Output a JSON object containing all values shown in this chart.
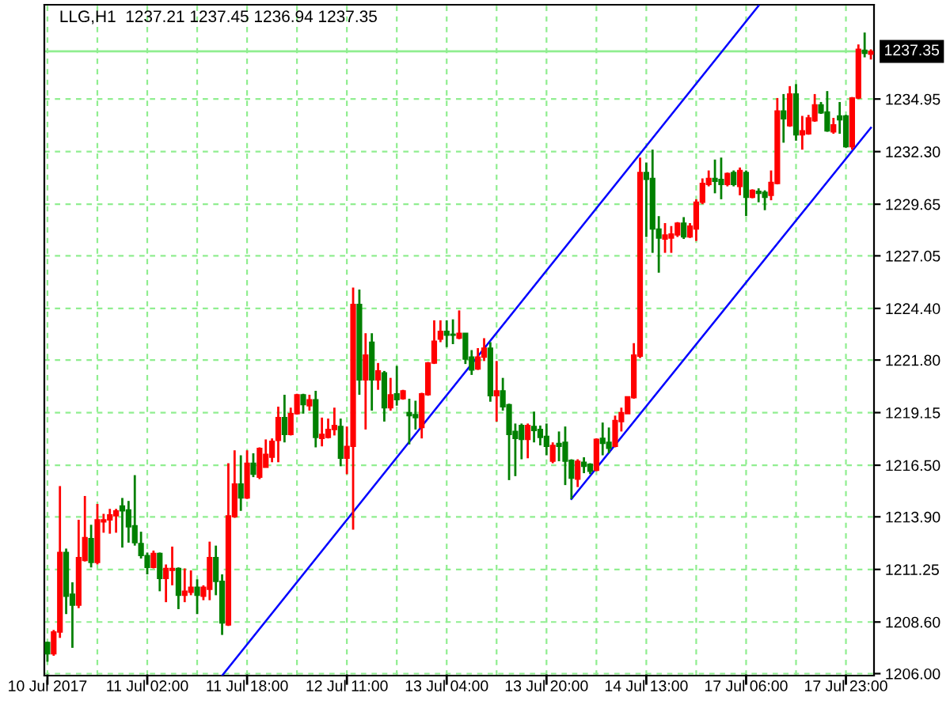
{
  "chart_data": {
    "type": "candlestick",
    "title": "LLG,H1  1237.21 1237.45 1236.94 1237.35",
    "categories": [
      "10 Jul 2017",
      null,
      null,
      null,
      null,
      null,
      null,
      null,
      null,
      null,
      null,
      null,
      null,
      null,
      null,
      null,
      "11 Jul 02:00",
      null,
      null,
      null,
      null,
      null,
      null,
      null,
      null,
      null,
      null,
      null,
      null,
      null,
      null,
      null,
      "11 Jul 18:00",
      null,
      null,
      null,
      null,
      null,
      null,
      null,
      null,
      null,
      null,
      null,
      null,
      null,
      null,
      null,
      "12 Jul 11:00",
      null,
      null,
      null,
      null,
      null,
      null,
      null,
      null,
      null,
      null,
      null,
      null,
      null,
      null,
      null,
      "13 Jul 04:00",
      null,
      null,
      null,
      null,
      null,
      null,
      null,
      null,
      null,
      null,
      null,
      null,
      null,
      null,
      null,
      "13 Jul 20:00",
      null,
      null,
      null,
      null,
      null,
      null,
      null,
      null,
      null,
      null,
      null,
      null,
      null,
      null,
      null,
      "14 Jul 13:00",
      null,
      null,
      null,
      null,
      null,
      null,
      null,
      null,
      null,
      null,
      null,
      null,
      null,
      null,
      null,
      "17 Jul 06:00",
      null,
      null,
      null,
      null,
      null,
      null,
      null,
      null,
      null,
      null,
      null,
      null,
      null,
      null,
      null,
      "17 Jul 23:00",
      null,
      null,
      null,
      null
    ],
    "ohlc": [
      [
        1207.57,
        1207.6,
        1206.6,
        1207.0
      ],
      [
        1207.0,
        1208.2,
        1206.9,
        1208.1
      ],
      [
        1208.1,
        1215.45,
        1207.8,
        1212.1
      ],
      [
        1212.1,
        1212.3,
        1209.0,
        1209.9
      ],
      [
        1210.0,
        1210.6,
        1207.3,
        1209.45
      ],
      [
        1209.45,
        1213.75,
        1209.3,
        1211.85
      ],
      [
        1211.7,
        1214.95,
        1211.65,
        1212.85
      ],
      [
        1212.8,
        1213.5,
        1211.35,
        1211.6
      ],
      [
        1211.6,
        1214.55,
        1211.5,
        1213.75
      ],
      [
        1213.65,
        1214.05,
        1213.1,
        1213.75
      ],
      [
        1213.75,
        1214.3,
        1213.05,
        1214.0
      ],
      [
        1213.95,
        1214.3,
        1213.1,
        1214.2
      ],
      [
        1214.45,
        1214.85,
        1212.35,
        1214.2
      ],
      [
        1214.25,
        1214.7,
        1212.6,
        1213.4
      ],
      [
        1213.45,
        1216.0,
        1212.45,
        1212.6
      ],
      [
        1212.55,
        1213.15,
        1211.8,
        1211.95
      ],
      [
        1211.95,
        1212.1,
        1211.0,
        1211.35
      ],
      [
        1211.35,
        1212.2,
        1211.3,
        1212.05
      ],
      [
        1212.05,
        1212.1,
        1210.15,
        1210.8
      ],
      [
        1210.8,
        1211.5,
        1209.6,
        1211.3
      ],
      [
        1211.2,
        1212.4,
        1210.45,
        1211.3
      ],
      [
        1211.3,
        1211.35,
        1209.25,
        1209.95
      ],
      [
        1209.95,
        1211.3,
        1209.6,
        1210.15
      ],
      [
        1210.1,
        1211.2,
        1209.95,
        1210.35
      ],
      [
        1210.35,
        1210.75,
        1209.0,
        1209.95
      ],
      [
        1209.9,
        1210.45,
        1209.7,
        1210.35
      ],
      [
        1210.25,
        1212.65,
        1209.7,
        1211.85
      ],
      [
        1211.85,
        1212.45,
        1209.95,
        1210.65
      ],
      [
        1210.65,
        1211.0,
        1207.95,
        1208.55
      ],
      [
        1208.45,
        1216.6,
        1208.4,
        1213.95
      ],
      [
        1213.9,
        1217.25,
        1213.85,
        1215.55
      ],
      [
        1215.55,
        1217.0,
        1214.2,
        1214.85
      ],
      [
        1214.85,
        1217.25,
        1214.8,
        1216.6
      ],
      [
        1216.6,
        1217.1,
        1215.9,
        1216.05
      ],
      [
        1215.9,
        1217.4,
        1215.8,
        1217.35
      ],
      [
        1216.4,
        1217.8,
        1216.4,
        1217.05
      ],
      [
        1216.9,
        1217.85,
        1216.65,
        1217.7
      ],
      [
        1217.75,
        1219.45,
        1216.65,
        1218.9
      ],
      [
        1218.9,
        1220.05,
        1217.65,
        1218.05
      ],
      [
        1218.05,
        1219.4,
        1218.0,
        1219.1
      ],
      [
        1219.1,
        1220.1,
        1219.05,
        1220.05
      ],
      [
        1220.05,
        1220.1,
        1219.1,
        1219.55
      ],
      [
        1219.5,
        1220.05,
        1219.25,
        1219.8
      ],
      [
        1219.8,
        1220.25,
        1217.4,
        1217.9
      ],
      [
        1217.85,
        1218.9,
        1217.45,
        1218.05
      ],
      [
        1217.9,
        1218.85,
        1217.85,
        1218.3
      ],
      [
        1218.3,
        1219.4,
        1218.0,
        1218.5
      ],
      [
        1218.45,
        1218.85,
        1216.45,
        1216.85
      ],
      [
        1216.85,
        1218.45,
        1216.05,
        1217.45
      ],
      [
        1217.45,
        1225.45,
        1213.25,
        1224.6
      ],
      [
        1224.6,
        1225.35,
        1220.05,
        1220.8
      ],
      [
        1220.8,
        1223.15,
        1218.3,
        1222.05
      ],
      [
        1222.7,
        1223.15,
        1219.25,
        1220.8
      ],
      [
        1220.8,
        1221.65,
        1220.3,
        1221.25
      ],
      [
        1221.15,
        1221.25,
        1218.7,
        1219.4
      ],
      [
        1219.4,
        1220.9,
        1219.25,
        1220.05
      ],
      [
        1220.1,
        1221.5,
        1219.5,
        1219.8
      ],
      [
        1219.85,
        1220.3,
        1219.8,
        1220.25
      ],
      [
        1219.15,
        1219.85,
        1217.55,
        1219.0
      ],
      [
        1219.05,
        1219.75,
        1218.3,
        1218.9
      ],
      [
        1218.4,
        1220.15,
        1217.85,
        1220.1
      ],
      [
        1220.05,
        1221.7,
        1220.0,
        1221.65
      ],
      [
        1221.65,
        1223.8,
        1221.6,
        1222.75
      ],
      [
        1222.85,
        1223.8,
        1222.7,
        1223.25
      ],
      [
        1223.25,
        1223.8,
        1222.45,
        1223.05
      ],
      [
        1223.1,
        1223.85,
        1222.6,
        1223.05
      ],
      [
        1222.9,
        1224.3,
        1222.85,
        1223.15
      ],
      [
        1223.15,
        1223.15,
        1221.6,
        1221.85
      ],
      [
        1221.95,
        1222.3,
        1221.05,
        1221.3
      ],
      [
        1221.35,
        1222.4,
        1221.3,
        1221.95
      ],
      [
        1221.95,
        1222.9,
        1221.75,
        1222.4
      ],
      [
        1222.4,
        1222.7,
        1219.7,
        1220.0
      ],
      [
        1220.0,
        1221.75,
        1218.7,
        1220.25
      ],
      [
        1220.25,
        1220.9,
        1219.25,
        1219.45
      ],
      [
        1219.55,
        1219.6,
        1215.75,
        1218.05
      ],
      [
        1218.2,
        1218.6,
        1215.95,
        1217.85
      ],
      [
        1218.5,
        1218.6,
        1216.8,
        1217.8
      ],
      [
        1217.8,
        1218.6,
        1216.85,
        1218.5
      ],
      [
        1218.45,
        1219.2,
        1217.65,
        1218.25
      ],
      [
        1218.3,
        1218.5,
        1217.5,
        1217.9
      ],
      [
        1217.95,
        1218.6,
        1217.0,
        1217.45
      ],
      [
        1216.7,
        1217.65,
        1216.6,
        1217.5
      ],
      [
        1217.6,
        1218.2,
        1216.7,
        1217.45
      ],
      [
        1217.65,
        1218.45,
        1215.5,
        1216.7
      ],
      [
        1216.75,
        1216.8,
        1214.8,
        1215.85
      ],
      [
        1215.8,
        1216.8,
        1215.4,
        1216.7
      ],
      [
        1216.65,
        1216.9,
        1216.1,
        1216.45
      ],
      [
        1216.55,
        1216.6,
        1216.05,
        1216.2
      ],
      [
        1216.25,
        1217.85,
        1216.2,
        1217.8
      ],
      [
        1217.85,
        1218.65,
        1217.0,
        1217.6
      ],
      [
        1217.65,
        1218.4,
        1217.1,
        1217.35
      ],
      [
        1217.45,
        1219.0,
        1217.4,
        1218.75
      ],
      [
        1218.7,
        1219.4,
        1218.2,
        1219.15
      ],
      [
        1219.1,
        1219.95,
        1219.1,
        1219.95
      ],
      [
        1219.9,
        1222.65,
        1219.85,
        1222.05
      ],
      [
        1222.0,
        1232.0,
        1221.9,
        1231.25
      ],
      [
        1231.25,
        1231.75,
        1228.0,
        1230.9
      ],
      [
        1230.95,
        1232.4,
        1227.2,
        1228.4
      ],
      [
        1228.4,
        1229.05,
        1226.2,
        1227.95
      ],
      [
        1227.9,
        1228.7,
        1227.2,
        1228.1
      ],
      [
        1227.95,
        1228.55,
        1227.2,
        1228.15
      ],
      [
        1228.1,
        1228.75,
        1228.0,
        1228.7
      ],
      [
        1228.7,
        1229.0,
        1227.9,
        1228.0
      ],
      [
        1228.0,
        1228.7,
        1227.95,
        1228.55
      ],
      [
        1228.4,
        1229.9,
        1227.8,
        1229.75
      ],
      [
        1229.75,
        1230.95,
        1229.65,
        1230.7
      ],
      [
        1230.65,
        1231.35,
        1230.55,
        1230.95
      ],
      [
        1230.95,
        1231.9,
        1230.2,
        1230.8
      ],
      [
        1230.9,
        1232.0,
        1229.9,
        1230.65
      ],
      [
        1230.65,
        1231.25,
        1230.55,
        1231.2
      ],
      [
        1231.25,
        1231.35,
        1230.55,
        1230.65
      ],
      [
        1230.55,
        1231.5,
        1230.1,
        1231.35
      ],
      [
        1231.25,
        1231.35,
        1229.05,
        1230.0
      ],
      [
        1230.0,
        1230.4,
        1229.95,
        1230.35
      ],
      [
        1230.3,
        1230.45,
        1229.75,
        1230.2
      ],
      [
        1230.25,
        1230.35,
        1229.35,
        1230.0
      ],
      [
        1230.1,
        1231.35,
        1229.85,
        1230.75
      ],
      [
        1230.7,
        1235.0,
        1230.65,
        1234.35
      ],
      [
        1234.35,
        1235.2,
        1232.75,
        1233.95
      ],
      [
        1233.6,
        1235.6,
        1233.55,
        1235.2
      ],
      [
        1235.2,
        1235.7,
        1232.85,
        1233.15
      ],
      [
        1233.15,
        1234.1,
        1232.4,
        1233.35
      ],
      [
        1233.2,
        1234.15,
        1233.15,
        1234.0
      ],
      [
        1233.85,
        1235.2,
        1233.8,
        1234.65
      ],
      [
        1234.65,
        1234.8,
        1234.2,
        1234.25
      ],
      [
        1234.3,
        1235.35,
        1233.3,
        1233.35
      ],
      [
        1233.3,
        1234.0,
        1233.2,
        1233.65
      ],
      [
        1234.1,
        1234.8,
        1233.2,
        1233.9
      ],
      [
        1234.1,
        1234.15,
        1232.5,
        1232.55
      ],
      [
        1232.55,
        1235.05,
        1232.4,
        1235.0
      ],
      [
        1235.0,
        1237.7,
        1234.95,
        1237.45
      ],
      [
        1237.4,
        1238.3,
        1237.05,
        1237.25
      ],
      [
        1237.21,
        1237.45,
        1236.94,
        1237.35
      ]
    ],
    "colors": [
      "#008000",
      "#ff0000",
      "#ff0000",
      "#008000",
      "#008000",
      "#ff0000",
      "#ff0000",
      "#008000",
      "#ff0000",
      "#ff0000",
      "#ff0000",
      "#ff0000",
      "#008000",
      "#008000",
      "#008000",
      "#008000",
      "#008000",
      "#ff0000",
      "#008000",
      "#ff0000",
      "#ff0000",
      "#008000",
      "#ff0000",
      "#ff0000",
      "#008000",
      "#ff0000",
      "#ff0000",
      "#008000",
      "#008000",
      "#ff0000",
      "#ff0000",
      "#008000",
      "#ff0000",
      "#008000",
      "#ff0000",
      "#ff0000",
      "#ff0000",
      "#ff0000",
      "#008000",
      "#ff0000",
      "#ff0000",
      "#008000",
      "#ff0000",
      "#008000",
      "#ff0000",
      "#ff0000",
      "#ff0000",
      "#008000",
      "#ff0000",
      "#ff0000",
      "#008000",
      "#ff0000",
      "#008000",
      "#ff0000",
      "#008000",
      "#ff0000",
      "#008000",
      "#ff0000",
      "#008000",
      "#008000",
      "#ff0000",
      "#ff0000",
      "#ff0000",
      "#ff0000",
      "#008000",
      "#008000",
      "#ff0000",
      "#008000",
      "#008000",
      "#ff0000",
      "#ff0000",
      "#008000",
      "#ff0000",
      "#008000",
      "#008000",
      "#008000",
      "#008000",
      "#ff0000",
      "#008000",
      "#008000",
      "#008000",
      "#ff0000",
      "#008000",
      "#008000",
      "#008000",
      "#ff0000",
      "#008000",
      "#008000",
      "#ff0000",
      "#008000",
      "#008000",
      "#ff0000",
      "#ff0000",
      "#ff0000",
      "#ff0000",
      "#ff0000",
      "#008000",
      "#008000",
      "#008000",
      "#ff0000",
      "#ff0000",
      "#ff0000",
      "#008000",
      "#ff0000",
      "#ff0000",
      "#ff0000",
      "#ff0000",
      "#008000",
      "#008000",
      "#ff0000",
      "#008000",
      "#ff0000",
      "#008000",
      "#ff0000",
      "#008000",
      "#008000",
      "#ff0000",
      "#ff0000",
      "#008000",
      "#ff0000",
      "#008000",
      "#ff0000",
      "#ff0000",
      "#ff0000",
      "#008000",
      "#008000",
      "#ff0000",
      "#008000",
      "#008000",
      "#ff0000",
      "#ff0000",
      "#008000",
      "#ff0000"
    ],
    "series": [
      {
        "type": "line",
        "color": "#0000ff",
        "values": [
          null,
          null,
          null,
          null,
          null,
          null,
          null,
          null,
          null,
          null,
          null,
          null,
          null,
          null,
          null,
          null,
          null,
          null,
          null,
          null,
          null,
          null,
          null,
          null,
          null,
          null,
          null,
          null,
          1205.9,
          null,
          null,
          null,
          null,
          null,
          null,
          null,
          null,
          null,
          null,
          null,
          null,
          null,
          null,
          null,
          null,
          null,
          null,
          null,
          null,
          null,
          null,
          null,
          null,
          null,
          null,
          null,
          null,
          null,
          null,
          null,
          null,
          null,
          null,
          null,
          null,
          null,
          null,
          null,
          null,
          null,
          null,
          null,
          null,
          null,
          null,
          null,
          null,
          null,
          null,
          null,
          null,
          null,
          null,
          null,
          null,
          null,
          null,
          null,
          null,
          null,
          null,
          null,
          null,
          null,
          null,
          null,
          null,
          null,
          null,
          null,
          null,
          null,
          null,
          null,
          null,
          null,
          null,
          null,
          null,
          null,
          null,
          null,
          null,
          null,
          1239.65,
          null,
          null,
          null,
          null,
          null,
          null,
          null,
          null,
          null,
          null,
          null,
          null,
          null,
          null,
          null,
          null,
          null,
          null
        ]
      },
      {
        "type": "line",
        "color": "#0000ff",
        "values": [
          null,
          null,
          null,
          null,
          null,
          null,
          null,
          null,
          null,
          null,
          null,
          null,
          null,
          null,
          null,
          null,
          null,
          null,
          null,
          null,
          null,
          null,
          null,
          null,
          null,
          null,
          null,
          null,
          null,
          null,
          null,
          null,
          null,
          null,
          null,
          null,
          null,
          null,
          null,
          null,
          null,
          null,
          null,
          null,
          null,
          null,
          null,
          null,
          null,
          null,
          null,
          null,
          null,
          null,
          null,
          null,
          null,
          null,
          null,
          null,
          null,
          null,
          null,
          null,
          null,
          null,
          null,
          null,
          null,
          null,
          null,
          null,
          null,
          null,
          null,
          null,
          null,
          null,
          null,
          null,
          null,
          null,
          null,
          null,
          1214.8,
          null,
          null,
          null,
          null,
          null,
          null,
          null,
          null,
          null,
          null,
          null,
          null,
          null,
          null,
          null,
          null,
          null,
          null,
          null,
          null,
          null,
          null,
          null,
          null,
          null,
          null,
          null,
          null,
          null,
          null,
          null,
          null,
          null,
          null,
          null,
          null,
          null,
          null,
          null,
          null,
          null,
          null,
          null,
          null,
          null,
          null,
          null,
          1233.5
        ]
      }
    ],
    "ylim": [
      1205.9,
      1239.7
    ],
    "yticks": [
      {
        "value": 1206.0,
        "label": "1206.00"
      },
      {
        "value": 1208.6,
        "label": "1208.60"
      },
      {
        "value": 1211.25,
        "label": "1211.25"
      },
      {
        "value": 1213.9,
        "label": "1213.90"
      },
      {
        "value": 1216.5,
        "label": "1216.50"
      },
      {
        "value": 1219.15,
        "label": "1219.15"
      },
      {
        "value": 1221.8,
        "label": "1221.80"
      },
      {
        "value": 1224.4,
        "label": "1224.40"
      },
      {
        "value": 1227.05,
        "label": "1227.05"
      },
      {
        "value": 1229.65,
        "label": "1229.65"
      },
      {
        "value": 1232.3,
        "label": "1232.30"
      },
      {
        "value": 1234.95,
        "label": "1234.95"
      }
    ],
    "ref_lines": [
      {
        "axis": "y",
        "value": 1237.35,
        "label": "1237.35",
        "color": "#90ee90"
      }
    ],
    "grid": true
  }
}
